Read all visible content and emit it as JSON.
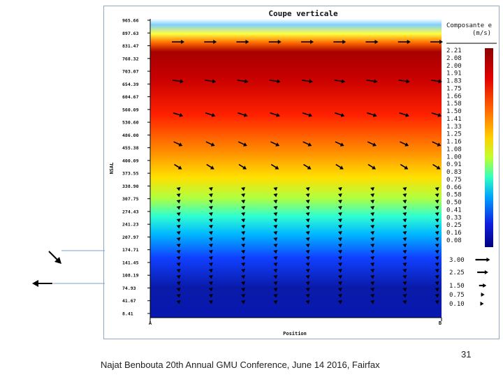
{
  "slide": {
    "footer": "Najat Benbouta 20th Annual GMU Conference, June 14 2016, Fairfax",
    "page_number": "31"
  },
  "chart_data": {
    "type": "heatmap",
    "title": "Coupe verticale",
    "xlabel": "Position",
    "ylabel": "NSAL",
    "x_ticks": [
      "A",
      "B"
    ],
    "y_ticks": [
      "965.66",
      "897.63",
      "831.47",
      "768.32",
      "703.07",
      "654.39",
      "604.67",
      "560.09",
      "530.60",
      "486.00",
      "455.38",
      "400.09",
      "373.55",
      "338.90",
      "307.75",
      "274.43",
      "241.23",
      "207.97",
      "174.71",
      "141.45",
      "108.19",
      "74.93",
      "41.67",
      "8.41"
    ],
    "colorbar": {
      "title": "Composante e",
      "units": "(m/s)",
      "labels": [
        "2.21",
        "2.08",
        "2.00",
        "1.91",
        "1.83",
        "1.75",
        "1.66",
        "1.58",
        "1.50",
        "1.41",
        "1.33",
        "1.25",
        "1.16",
        "1.08",
        "1.00",
        "0.91",
        "0.83",
        "0.75",
        "0.66",
        "0.58",
        "0.50",
        "0.41",
        "0.33",
        "0.25",
        "0.16",
        "0.08"
      ]
    },
    "vector_legend": {
      "labels": [
        "3.00",
        "2.25",
        "1.50",
        "0.75",
        "0.10"
      ],
      "values": [
        3.0,
        2.25,
        1.5,
        0.75,
        0.1
      ]
    },
    "ref_arrow_colors": [
      "#000000"
    ]
  }
}
